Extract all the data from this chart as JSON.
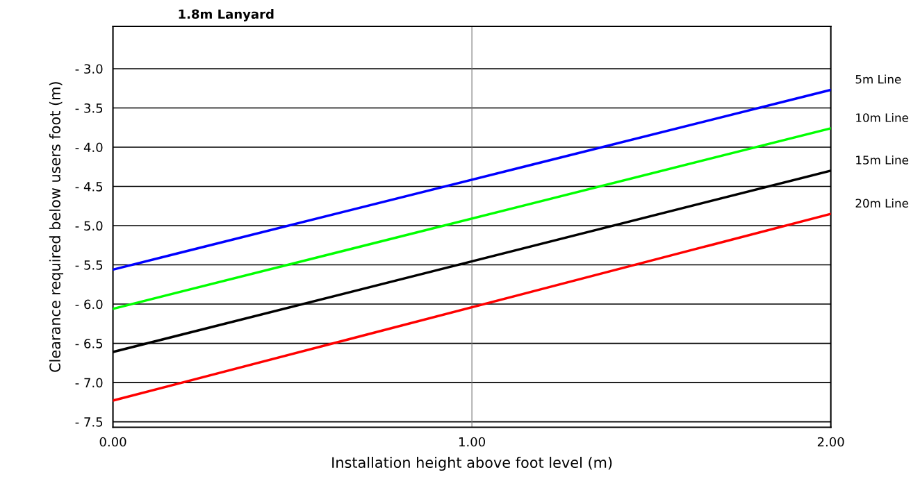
{
  "chart_data": {
    "type": "line",
    "title": "1.8m Lanyard",
    "xlabel": "Installation height above foot level (m)",
    "ylabel": "Clearance required below users foot (m)",
    "x": [
      0,
      2
    ],
    "series": [
      {
        "name": "5m Line",
        "color": "#0000ff",
        "values": [
          -5.56,
          -3.27
        ]
      },
      {
        "name": "10m Line",
        "color": "#00ff00",
        "values": [
          -6.06,
          -3.76
        ]
      },
      {
        "name": "15m Line",
        "color": "#000000",
        "values": [
          -6.61,
          -4.3
        ]
      },
      {
        "name": "20m Line",
        "color": "#ff0000",
        "values": [
          -7.23,
          -4.85
        ]
      }
    ],
    "xlim": [
      0,
      2
    ],
    "xticks": [
      {
        "value": 0,
        "label": "0.00"
      },
      {
        "value": 1,
        "label": "1.00"
      },
      {
        "value": 2,
        "label": "2.00"
      }
    ],
    "ylim": [
      -7.57,
      -2.46
    ],
    "yticks": [
      {
        "value": -3.0,
        "label": "- 3.0"
      },
      {
        "value": -3.5,
        "label": "- 3.5"
      },
      {
        "value": -4.0,
        "label": "- 4.0"
      },
      {
        "value": -4.5,
        "label": "- 4.5"
      },
      {
        "value": -5.0,
        "label": "- 5.0"
      },
      {
        "value": -5.5,
        "label": "- 5.5"
      },
      {
        "value": -6.0,
        "label": "- 6.0"
      },
      {
        "value": -6.5,
        "label": "- 6.5"
      },
      {
        "value": -7.0,
        "label": "- 7.0"
      },
      {
        "value": -7.5,
        "label": "- 7.5"
      }
    ],
    "grid": "y",
    "ref_lines": [
      {
        "axis": "x",
        "value": 1,
        "color": "#777777"
      }
    ],
    "marker": "none",
    "line_style": "solid"
  }
}
